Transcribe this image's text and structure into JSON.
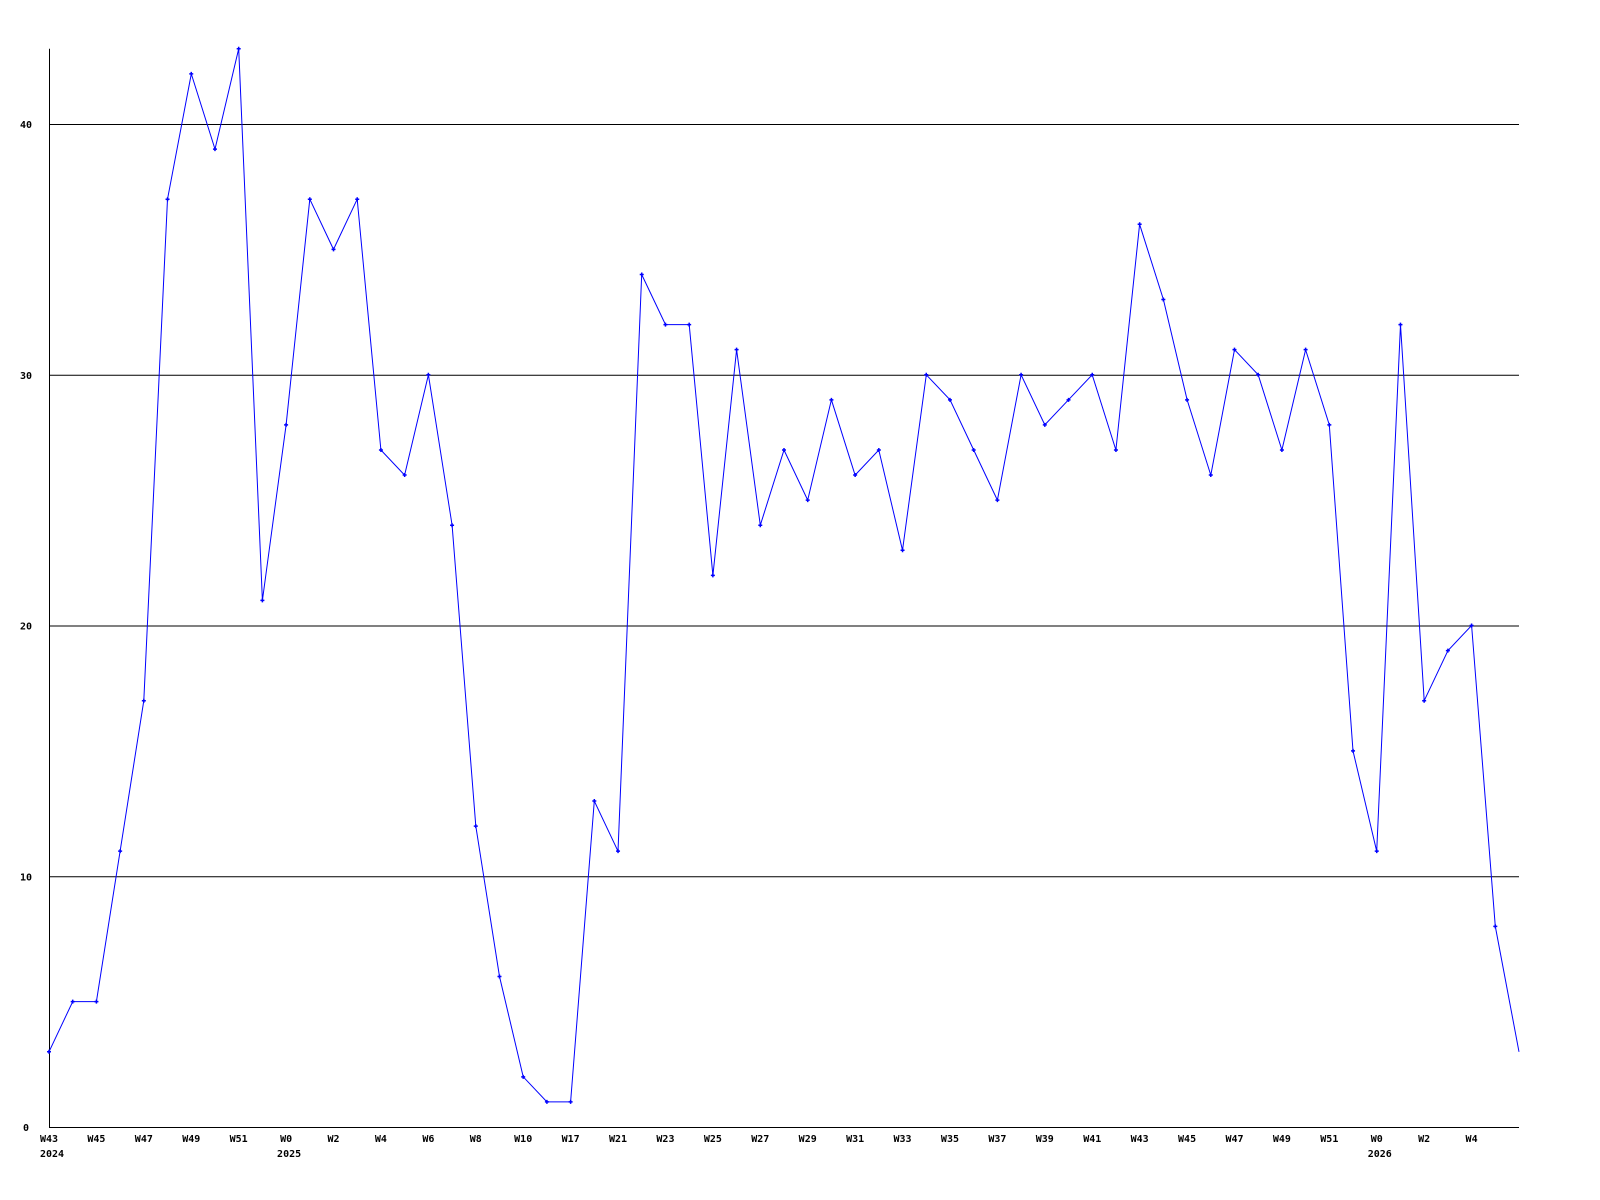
{
  "chart_data": {
    "type": "line",
    "title": "",
    "xlabel": "",
    "ylabel": "",
    "ylim": [
      0,
      43
    ],
    "yticks": [
      0,
      10,
      20,
      30,
      40
    ],
    "grid": true,
    "line_color": "#0000ff",
    "grid_color": "#000000",
    "x_tick_every": 2,
    "xtick_labels": [
      "W43",
      "W45",
      "W47",
      "W49",
      "W51",
      "W0",
      "W2",
      "W4",
      "W6",
      "W8",
      "W10",
      "W17",
      "W21",
      "W23",
      "W25",
      "W27",
      "W29",
      "W31",
      "W33",
      "W35",
      "W37",
      "W39",
      "W41",
      "W43",
      "W45",
      "W47",
      "W49",
      "W51",
      "W0",
      "W2",
      "W4"
    ],
    "year_labels": [
      {
        "tick_index": 0,
        "label": "2024"
      },
      {
        "tick_index": 5,
        "label": "2025"
      },
      {
        "tick_index": 28,
        "label": "2026"
      }
    ],
    "values": [
      3,
      5,
      5,
      11,
      17,
      37,
      42,
      39,
      43,
      21,
      28,
      37,
      35,
      37,
      27,
      26,
      30,
      24,
      12,
      6,
      2,
      1,
      1,
      13,
      11,
      34,
      32,
      32,
      22,
      31,
      24,
      27,
      25,
      29,
      26,
      27,
      23,
      30,
      29,
      27,
      25,
      30,
      28,
      29,
      30,
      27,
      36,
      33,
      29,
      26,
      31,
      30,
      27,
      31,
      28,
      15,
      11,
      32,
      17,
      19,
      20,
      8,
      3
    ]
  }
}
